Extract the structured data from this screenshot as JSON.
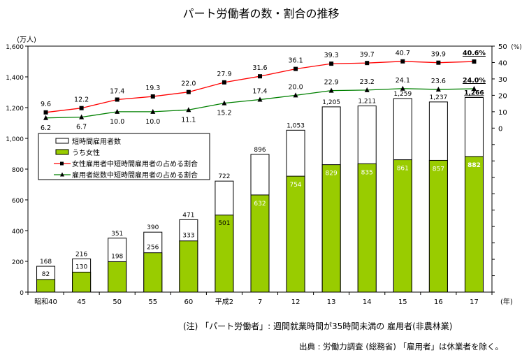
{
  "chart_data": {
    "type": "bar+line",
    "title": "パート労働者の数・割合の推移",
    "left_unit": "(万人)",
    "right_unit": "(%)",
    "x_unit": "(年)",
    "categories": [
      "昭和40",
      "45",
      "50",
      "55",
      "60",
      "平成2",
      "7",
      "12",
      "13",
      "14",
      "15",
      "16",
      "17"
    ],
    "left_ylim": [
      0,
      1600
    ],
    "left_ticks": [
      "0",
      "200",
      "400",
      "600",
      "800",
      "1,000",
      "1,200",
      "1,400",
      "1,600"
    ],
    "right_ylim": [
      -100,
      50
    ],
    "right_ticks": [
      "0",
      "10",
      "20",
      "30",
      "40",
      "50"
    ],
    "series": [
      {
        "name": "短時間雇用者数",
        "type": "bar",
        "color": "#ffffff",
        "values": [
          168,
          216,
          351,
          390,
          471,
          722,
          896,
          1053,
          1205,
          1211,
          1259,
          1237,
          1266
        ],
        "labels": [
          "168",
          "216",
          "351",
          "390",
          "471",
          "722",
          "896",
          "1,053",
          "1,205",
          "1,211",
          "1,259",
          "1,237",
          "1,266"
        ]
      },
      {
        "name": "うち女性",
        "type": "bar",
        "color": "#99cc00",
        "values": [
          82,
          130,
          198,
          256,
          333,
          501,
          632,
          754,
          829,
          835,
          861,
          857,
          882
        ],
        "labels": [
          "82",
          "130",
          "198",
          "256",
          "333",
          "501",
          "632",
          "754",
          "829",
          "835",
          "861",
          "857",
          "882"
        ]
      },
      {
        "name": "女性雇用者中短時間雇用者の占める割合",
        "type": "line",
        "axis": "right",
        "color": "#ff0000",
        "values": [
          9.6,
          12.2,
          17.4,
          19.3,
          22.0,
          27.9,
          31.6,
          36.1,
          39.3,
          39.7,
          40.7,
          39.9,
          40.6
        ],
        "labels": [
          "9.6",
          "12.2",
          "17.4",
          "19.3",
          "22.0",
          "27.9",
          "31.6",
          "36.1",
          "39.3",
          "39.7",
          "40.7",
          "39.9",
          "40.6%"
        ]
      },
      {
        "name": "雇用者総数中短時間雇用者の占める割合",
        "type": "line",
        "axis": "right",
        "color": "#008000",
        "values": [
          6.2,
          6.7,
          10.0,
          10.0,
          11.1,
          15.2,
          17.4,
          20.0,
          22.9,
          23.2,
          24.1,
          23.6,
          24.0
        ],
        "labels": [
          "6.2",
          "6.7",
          "10.0",
          "10.0",
          "11.1",
          "15.2",
          "17.4",
          "20.0",
          "22.9",
          "23.2",
          "24.1",
          "23.6",
          "24.0%"
        ]
      }
    ],
    "legend": "upper-left inside"
  },
  "notes": {
    "definition": "(注) 「パート労働者」: 週間就業時間が35時間未満の 雇用者(非農林業)",
    "source": "出典 : 労働力調査 (総務省) 「雇用者」は休業者を除く。"
  }
}
